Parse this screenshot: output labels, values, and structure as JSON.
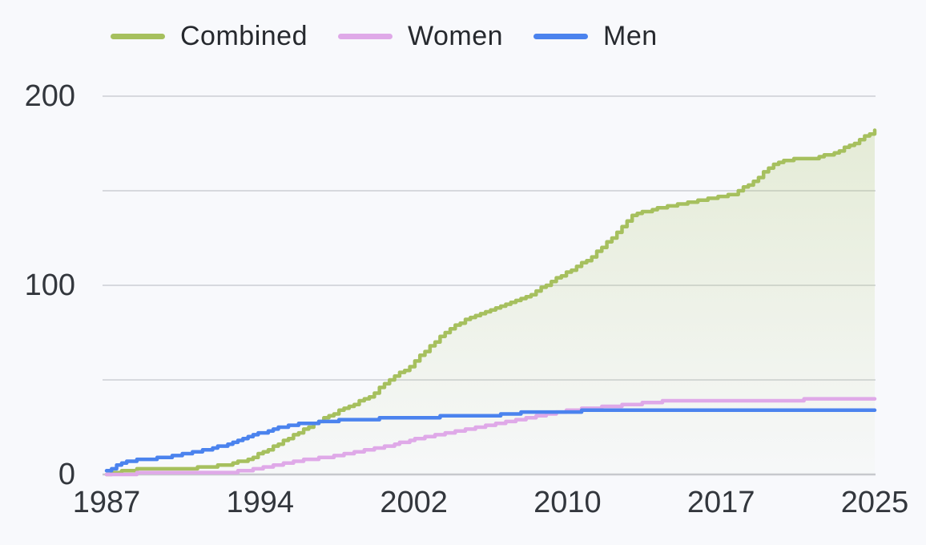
{
  "legend": {
    "items": [
      {
        "label": "Combined",
        "color": "#a6c05e"
      },
      {
        "label": "Women",
        "color": "#dfa9e8"
      },
      {
        "label": "Men",
        "color": "#4b83ee"
      }
    ]
  },
  "colors": {
    "background": "#f8f9fc",
    "gridline": "#d7d9de",
    "axis_line": "#c7c9ce",
    "tick_text": "#33373d",
    "legend_text": "#26292e",
    "area_fill_top": "rgba(166,192,94,0.26)",
    "area_fill_bottom": "rgba(166,192,94,0.02)"
  },
  "chart_data": {
    "type": "line",
    "subtype": "cumulative-step",
    "title": "",
    "xlabel": "",
    "ylabel": "",
    "legend_position": "top",
    "grid": "horizontal",
    "x_range": [
      1987,
      2025
    ],
    "y_range": [
      0,
      200
    ],
    "x_ticks": [
      "1987",
      "1994",
      "2002",
      "2010",
      "2017",
      "2025"
    ],
    "y_ticks": [
      0,
      100,
      200
    ],
    "y_gridlines": [
      0,
      50,
      100,
      150,
      200
    ],
    "x": [
      1987,
      1988,
      1989,
      1990,
      1991,
      1992,
      1993,
      1994,
      1995,
      1996,
      1997,
      1998,
      1999,
      2000,
      2001,
      2002,
      2003,
      2004,
      2005,
      2006,
      2007,
      2008,
      2009,
      2010,
      2011,
      2012,
      2013,
      2014,
      2015,
      2016,
      2017,
      2018,
      2019,
      2020,
      2021,
      2022,
      2023,
      2024,
      2025
    ],
    "series": [
      {
        "name": "Combined",
        "color": "#a6c05e",
        "area_fill": true,
        "values": [
          0,
          2,
          3,
          3,
          3,
          4,
          5,
          8,
          13,
          19,
          25,
          31,
          36,
          41,
          50,
          57,
          68,
          77,
          83,
          87,
          91,
          95,
          102,
          108,
          115,
          125,
          137,
          140,
          142,
          144,
          146,
          148,
          155,
          164,
          167,
          167,
          170,
          175,
          182
        ]
      },
      {
        "name": "Women",
        "color": "#dfa9e8",
        "area_fill": false,
        "values": [
          0,
          0,
          1,
          1,
          1,
          1,
          1,
          2,
          4,
          6,
          8,
          9,
          11,
          13,
          15,
          18,
          20,
          22,
          24,
          26,
          28,
          30,
          32,
          34,
          35,
          36,
          37,
          38,
          39,
          39,
          39,
          39,
          39,
          39,
          39,
          40,
          40,
          40,
          40
        ]
      },
      {
        "name": "Men",
        "color": "#4b83ee",
        "area_fill": false,
        "values": [
          2,
          7,
          8,
          9,
          11,
          13,
          16,
          20,
          23,
          26,
          27,
          28,
          29,
          29,
          30,
          30,
          30,
          31,
          31,
          31,
          32,
          33,
          33,
          33,
          34,
          34,
          34,
          34,
          34,
          34,
          34,
          34,
          34,
          34,
          34,
          34,
          34,
          34,
          34
        ]
      }
    ]
  }
}
